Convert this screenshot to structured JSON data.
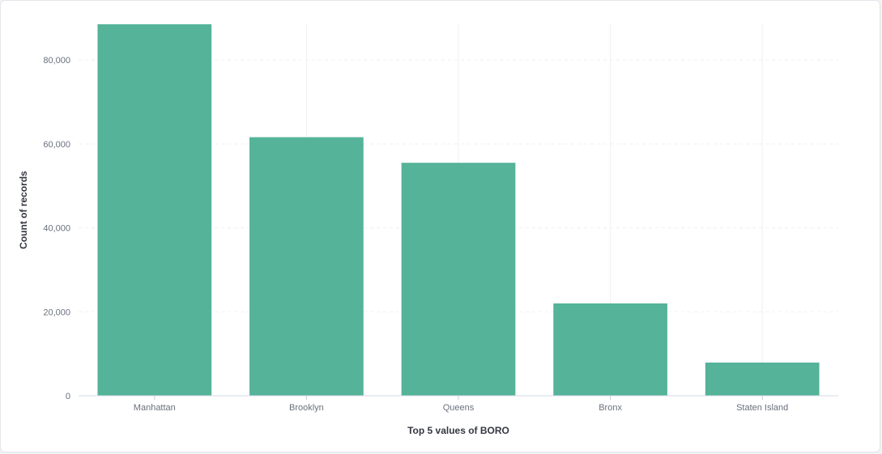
{
  "chart_data": {
    "type": "bar",
    "title": "",
    "xlabel": "Top 5 values of BORO",
    "ylabel": "Count of records",
    "categories": [
      "Manhattan",
      "Brooklyn",
      "Queens",
      "Bronx",
      "Staten Island"
    ],
    "values": [
      88500,
      61600,
      55500,
      22000,
      7900
    ],
    "yticks": [
      0,
      20000,
      40000,
      60000,
      80000
    ],
    "ytick_labels": [
      "0",
      "20,000",
      "40,000",
      "60,000",
      "80,000"
    ],
    "ylim": [
      0,
      88500
    ],
    "grid": true,
    "legend": "none",
    "bar_color": "#54b399",
    "grid_color": "#eef0f3"
  }
}
